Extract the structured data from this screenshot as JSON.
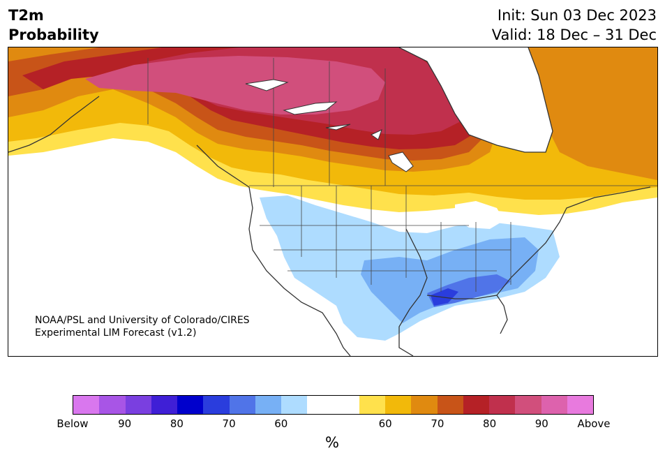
{
  "header": {
    "title_line1": "T2m",
    "title_line2": "Probability",
    "init_label": "Init: Sun 03 Dec 2023",
    "valid_label": "Valid: 18 Dec – 31 Dec"
  },
  "map": {
    "credit_line1": "NOAA/PSL and University of Colorado/CIRES",
    "credit_line2": "Experimental LIM Forecast (v1.2)"
  },
  "colorbar": {
    "unit": "%",
    "colors": [
      "#d977ee",
      "#a855e6",
      "#7a3fe0",
      "#3f1fd6",
      "#0000cc",
      "#2a3ddd",
      "#5074e8",
      "#77b0f5",
      "#aedcff",
      "#ffffff",
      "#ffffff",
      "#ffe14c",
      "#f2b90a",
      "#e08a10",
      "#c85418",
      "#b52126",
      "#c0304d",
      "#d14f7c",
      "#dd62ad",
      "#e87ade"
    ],
    "tick_labels": [
      "Below",
      "90",
      "80",
      "70",
      "60",
      "60",
      "70",
      "80",
      "90",
      "Above"
    ]
  }
}
